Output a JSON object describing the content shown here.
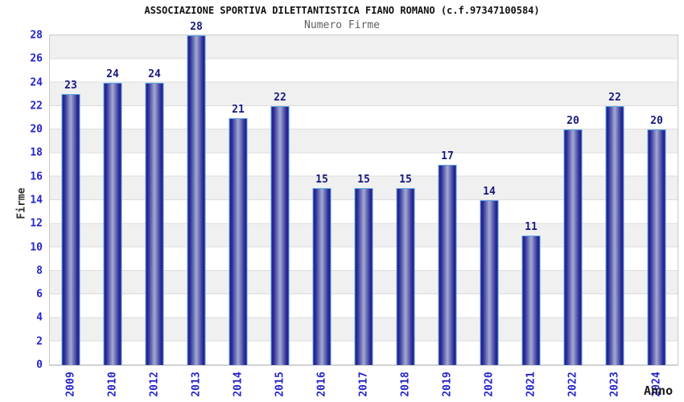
{
  "header": {
    "title": "ASSOCIAZIONE SPORTIVA DILETTANTISTICA FIANO ROMANO (c.f.97347100584)",
    "subtitle": "Numero Firme"
  },
  "chart_data": {
    "type": "bar",
    "title": "ASSOCIAZIONE SPORTIVA DILETTANTISTICA FIANO ROMANO (c.f.97347100584)",
    "subtitle": "Numero Firme",
    "categories": [
      "2009",
      "2010",
      "2012",
      "2013",
      "2014",
      "2015",
      "2016",
      "2017",
      "2018",
      "2019",
      "2020",
      "2021",
      "2022",
      "2023",
      "2024"
    ],
    "values": [
      23,
      24,
      24,
      28,
      21,
      22,
      15,
      15,
      15,
      17,
      14,
      11,
      20,
      22,
      20
    ],
    "xlabel": "Anno",
    "ylabel": "Firme",
    "ylim": [
      0,
      28
    ],
    "yticks": [
      0,
      2,
      4,
      6,
      8,
      10,
      12,
      14,
      16,
      18,
      20,
      22,
      24,
      26,
      28
    ],
    "grid": "horizontal gridlines with alternating gray/white bands every 2 units",
    "legend": "none",
    "value_labels": "shown above each bar",
    "colors": {
      "bar_dark": "#1b1b88",
      "bar_mid": "#30309a",
      "bar_light": "#a3abd2",
      "bar_outline": "#58a2e4",
      "tick_label": "#2424cc",
      "value_label": "#18187e",
      "band": "#f0f0f0",
      "gridline": "#dcdcdc",
      "plot_border": "#c9c9c9",
      "title": "#111111",
      "subtitle": "#606060"
    }
  }
}
